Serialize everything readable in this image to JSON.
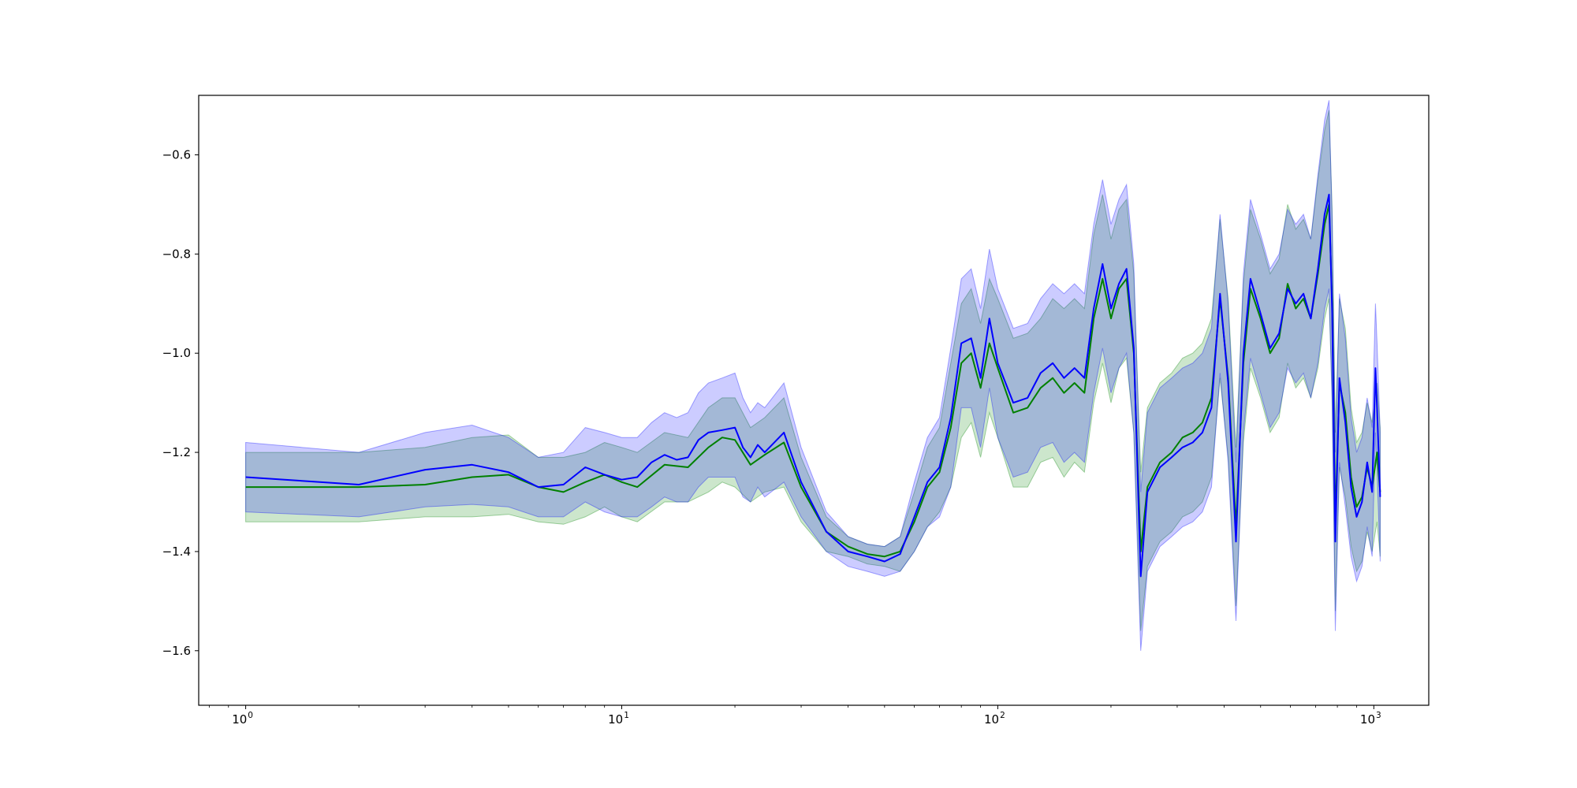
{
  "chart_data": {
    "type": "line",
    "title": "",
    "xlabel": "",
    "ylabel": "",
    "xscale": "log",
    "xlim": [
      0.75,
      1400
    ],
    "ylim": [
      -1.71,
      -0.48
    ],
    "grid": false,
    "legend": "none",
    "x_ticks": [
      {
        "base": "10",
        "exp": "0",
        "value": 1
      },
      {
        "base": "10",
        "exp": "1",
        "value": 10
      },
      {
        "base": "10",
        "exp": "2",
        "value": 100
      },
      {
        "base": "10",
        "exp": "3",
        "value": 1000
      }
    ],
    "y_ticks": [
      {
        "label": "−0.6",
        "value": -0.6
      },
      {
        "label": "−0.8",
        "value": -0.8
      },
      {
        "label": "−1.0",
        "value": -1.0
      },
      {
        "label": "−1.2",
        "value": -1.2
      },
      {
        "label": "−1.4",
        "value": -1.4
      },
      {
        "label": "−1.6",
        "value": -1.6
      }
    ],
    "series": [
      {
        "color": "#008000",
        "band_color": "#008000",
        "band_opacity": 0.2,
        "points": [
          [
            1,
            -1.27,
            -1.2,
            -1.34
          ],
          [
            2,
            -1.27,
            -1.2,
            -1.34
          ],
          [
            3,
            -1.265,
            -1.19,
            -1.33
          ],
          [
            4,
            -1.25,
            -1.17,
            -1.33
          ],
          [
            5,
            -1.245,
            -1.165,
            -1.325
          ],
          [
            6,
            -1.27,
            -1.21,
            -1.34
          ],
          [
            7,
            -1.28,
            -1.21,
            -1.345
          ],
          [
            8,
            -1.26,
            -1.2,
            -1.33
          ],
          [
            9,
            -1.245,
            -1.18,
            -1.31
          ],
          [
            10,
            -1.26,
            -1.19,
            -1.33
          ],
          [
            11,
            -1.27,
            -1.2,
            -1.34
          ],
          [
            13,
            -1.225,
            -1.16,
            -1.3
          ],
          [
            15,
            -1.23,
            -1.17,
            -1.3
          ],
          [
            17,
            -1.19,
            -1.11,
            -1.28
          ],
          [
            18.5,
            -1.17,
            -1.09,
            -1.26
          ],
          [
            20,
            -1.175,
            -1.09,
            -1.27
          ],
          [
            22,
            -1.225,
            -1.15,
            -1.3
          ],
          [
            24,
            -1.205,
            -1.13,
            -1.28
          ],
          [
            27,
            -1.18,
            -1.09,
            -1.27
          ],
          [
            30,
            -1.27,
            -1.21,
            -1.34
          ],
          [
            35,
            -1.36,
            -1.33,
            -1.4
          ],
          [
            40,
            -1.39,
            -1.37,
            -1.41
          ],
          [
            45,
            -1.405,
            -1.385,
            -1.425
          ],
          [
            50,
            -1.41,
            -1.39,
            -1.43
          ],
          [
            55,
            -1.4,
            -1.37,
            -1.44
          ],
          [
            60,
            -1.34,
            -1.28,
            -1.4
          ],
          [
            65,
            -1.27,
            -1.19,
            -1.35
          ],
          [
            70,
            -1.24,
            -1.15,
            -1.32
          ],
          [
            75,
            -1.15,
            -1.02,
            -1.27
          ],
          [
            80,
            -1.02,
            -0.9,
            -1.17
          ],
          [
            85,
            -1.0,
            -0.87,
            -1.14
          ],
          [
            90,
            -1.07,
            -0.94,
            -1.21
          ],
          [
            95,
            -0.98,
            -0.85,
            -1.12
          ],
          [
            100,
            -1.03,
            -0.89,
            -1.17
          ],
          [
            110,
            -1.12,
            -0.97,
            -1.27
          ],
          [
            120,
            -1.11,
            -0.96,
            -1.27
          ],
          [
            130,
            -1.07,
            -0.93,
            -1.22
          ],
          [
            140,
            -1.05,
            -0.89,
            -1.21
          ],
          [
            150,
            -1.08,
            -0.91,
            -1.25
          ],
          [
            160,
            -1.06,
            -0.89,
            -1.22
          ],
          [
            170,
            -1.08,
            -0.91,
            -1.24
          ],
          [
            180,
            -0.93,
            -0.76,
            -1.1
          ],
          [
            190,
            -0.85,
            -0.68,
            -1.02
          ],
          [
            200,
            -0.93,
            -0.77,
            -1.1
          ],
          [
            210,
            -0.87,
            -0.71,
            -1.03
          ],
          [
            220,
            -0.85,
            -0.69,
            -1.01
          ],
          [
            230,
            -1.0,
            -0.84,
            -1.16
          ],
          [
            240,
            -1.4,
            -1.24,
            -1.56
          ],
          [
            250,
            -1.27,
            -1.11,
            -1.43
          ],
          [
            270,
            -1.22,
            -1.06,
            -1.38
          ],
          [
            290,
            -1.2,
            -1.04,
            -1.36
          ],
          [
            310,
            -1.17,
            -1.01,
            -1.33
          ],
          [
            330,
            -1.16,
            -1.0,
            -1.32
          ],
          [
            350,
            -1.14,
            -0.98,
            -1.3
          ],
          [
            370,
            -1.09,
            -0.93,
            -1.25
          ],
          [
            390,
            -0.89,
            -0.73,
            -1.05
          ],
          [
            410,
            -1.05,
            -0.89,
            -1.21
          ],
          [
            430,
            -1.35,
            -1.19,
            -1.51
          ],
          [
            450,
            -1.02,
            -0.86,
            -1.18
          ],
          [
            470,
            -0.87,
            -0.71,
            -1.03
          ],
          [
            500,
            -0.93,
            -0.77,
            -1.09
          ],
          [
            530,
            -1.0,
            -0.84,
            -1.16
          ],
          [
            560,
            -0.97,
            -0.81,
            -1.13
          ],
          [
            590,
            -0.86,
            -0.7,
            -1.02
          ],
          [
            620,
            -0.91,
            -0.75,
            -1.07
          ],
          [
            650,
            -0.89,
            -0.73,
            -1.05
          ],
          [
            680,
            -0.93,
            -0.77,
            -1.09
          ],
          [
            710,
            -0.84,
            -0.65,
            -1.03
          ],
          [
            740,
            -0.74,
            -0.55,
            -0.93
          ],
          [
            760,
            -0.7,
            -0.51,
            -0.89
          ],
          [
            775,
            -0.9,
            -0.71,
            -1.09
          ],
          [
            790,
            -1.34,
            -1.16,
            -1.52
          ],
          [
            810,
            -1.06,
            -0.89,
            -1.23
          ],
          [
            840,
            -1.12,
            -0.95,
            -1.29
          ],
          [
            870,
            -1.25,
            -1.11,
            -1.39
          ],
          [
            900,
            -1.31,
            -1.18,
            -1.44
          ],
          [
            930,
            -1.29,
            -1.16,
            -1.42
          ],
          [
            960,
            -1.23,
            -1.1,
            -1.36
          ],
          [
            990,
            -1.27,
            -1.14,
            -1.4
          ],
          [
            1020,
            -1.2,
            -1.06,
            -1.34
          ],
          [
            1040,
            -1.28,
            -1.15,
            -1.41
          ]
        ]
      },
      {
        "color": "#0000ff",
        "band_color": "#0000ff",
        "band_opacity": 0.2,
        "points": [
          [
            1,
            -1.25,
            -1.18,
            -1.32
          ],
          [
            2,
            -1.265,
            -1.2,
            -1.33
          ],
          [
            3,
            -1.235,
            -1.16,
            -1.31
          ],
          [
            4,
            -1.225,
            -1.145,
            -1.305
          ],
          [
            5,
            -1.24,
            -1.17,
            -1.31
          ],
          [
            6,
            -1.27,
            -1.21,
            -1.33
          ],
          [
            7,
            -1.265,
            -1.2,
            -1.33
          ],
          [
            8,
            -1.23,
            -1.15,
            -1.3
          ],
          [
            9,
            -1.245,
            -1.16,
            -1.32
          ],
          [
            10,
            -1.255,
            -1.17,
            -1.33
          ],
          [
            11,
            -1.25,
            -1.17,
            -1.33
          ],
          [
            12,
            -1.22,
            -1.14,
            -1.31
          ],
          [
            13,
            -1.205,
            -1.12,
            -1.29
          ],
          [
            14,
            -1.215,
            -1.13,
            -1.3
          ],
          [
            15,
            -1.21,
            -1.12,
            -1.3
          ],
          [
            16,
            -1.175,
            -1.08,
            -1.27
          ],
          [
            17,
            -1.16,
            -1.06,
            -1.25
          ],
          [
            18.5,
            -1.155,
            -1.05,
            -1.25
          ],
          [
            20,
            -1.15,
            -1.04,
            -1.25
          ],
          [
            21,
            -1.19,
            -1.09,
            -1.29
          ],
          [
            22,
            -1.21,
            -1.12,
            -1.3
          ],
          [
            23,
            -1.185,
            -1.1,
            -1.27
          ],
          [
            24,
            -1.2,
            -1.11,
            -1.29
          ],
          [
            27,
            -1.16,
            -1.06,
            -1.26
          ],
          [
            30,
            -1.26,
            -1.19,
            -1.33
          ],
          [
            35,
            -1.36,
            -1.32,
            -1.4
          ],
          [
            40,
            -1.4,
            -1.37,
            -1.43
          ],
          [
            45,
            -1.41,
            -1.385,
            -1.44
          ],
          [
            50,
            -1.42,
            -1.39,
            -1.45
          ],
          [
            55,
            -1.405,
            -1.37,
            -1.44
          ],
          [
            60,
            -1.33,
            -1.26,
            -1.4
          ],
          [
            65,
            -1.26,
            -1.17,
            -1.35
          ],
          [
            70,
            -1.23,
            -1.13,
            -1.33
          ],
          [
            75,
            -1.13,
            -0.99,
            -1.27
          ],
          [
            80,
            -0.98,
            -0.85,
            -1.11
          ],
          [
            85,
            -0.97,
            -0.83,
            -1.11
          ],
          [
            90,
            -1.05,
            -0.91,
            -1.19
          ],
          [
            95,
            -0.93,
            -0.79,
            -1.07
          ],
          [
            100,
            -1.02,
            -0.87,
            -1.17
          ],
          [
            110,
            -1.1,
            -0.95,
            -1.25
          ],
          [
            120,
            -1.09,
            -0.94,
            -1.24
          ],
          [
            130,
            -1.04,
            -0.89,
            -1.19
          ],
          [
            140,
            -1.02,
            -0.86,
            -1.18
          ],
          [
            150,
            -1.05,
            -0.88,
            -1.22
          ],
          [
            160,
            -1.03,
            -0.86,
            -1.2
          ],
          [
            170,
            -1.05,
            -0.88,
            -1.22
          ],
          [
            180,
            -0.91,
            -0.74,
            -1.08
          ],
          [
            190,
            -0.82,
            -0.65,
            -0.99
          ],
          [
            200,
            -0.91,
            -0.74,
            -1.08
          ],
          [
            210,
            -0.86,
            -0.69,
            -1.03
          ],
          [
            220,
            -0.83,
            -0.66,
            -1.0
          ],
          [
            230,
            -0.99,
            -0.82,
            -1.16
          ],
          [
            240,
            -1.45,
            -1.28,
            -1.6
          ],
          [
            250,
            -1.28,
            -1.12,
            -1.44
          ],
          [
            270,
            -1.23,
            -1.07,
            -1.39
          ],
          [
            290,
            -1.21,
            -1.05,
            -1.37
          ],
          [
            310,
            -1.19,
            -1.03,
            -1.35
          ],
          [
            330,
            -1.18,
            -1.02,
            -1.34
          ],
          [
            350,
            -1.16,
            -1.0,
            -1.32
          ],
          [
            370,
            -1.11,
            -0.95,
            -1.27
          ],
          [
            390,
            -0.88,
            -0.72,
            -1.04
          ],
          [
            410,
            -1.06,
            -0.9,
            -1.22
          ],
          [
            430,
            -1.38,
            -1.22,
            -1.54
          ],
          [
            450,
            -1.0,
            -0.84,
            -1.16
          ],
          [
            470,
            -0.85,
            -0.69,
            -1.01
          ],
          [
            500,
            -0.92,
            -0.76,
            -1.08
          ],
          [
            530,
            -0.99,
            -0.83,
            -1.15
          ],
          [
            560,
            -0.96,
            -0.8,
            -1.12
          ],
          [
            590,
            -0.87,
            -0.71,
            -1.03
          ],
          [
            620,
            -0.9,
            -0.74,
            -1.06
          ],
          [
            650,
            -0.88,
            -0.72,
            -1.04
          ],
          [
            680,
            -0.93,
            -0.77,
            -1.09
          ],
          [
            710,
            -0.83,
            -0.64,
            -1.02
          ],
          [
            740,
            -0.72,
            -0.53,
            -0.91
          ],
          [
            760,
            -0.68,
            -0.49,
            -0.87
          ],
          [
            775,
            -0.92,
            -0.73,
            -1.11
          ],
          [
            790,
            -1.38,
            -1.2,
            -1.56
          ],
          [
            810,
            -1.05,
            -0.88,
            -1.22
          ],
          [
            840,
            -1.14,
            -0.97,
            -1.31
          ],
          [
            870,
            -1.27,
            -1.13,
            -1.41
          ],
          [
            900,
            -1.33,
            -1.2,
            -1.46
          ],
          [
            930,
            -1.3,
            -1.17,
            -1.43
          ],
          [
            960,
            -1.22,
            -1.09,
            -1.35
          ],
          [
            990,
            -1.28,
            -1.15,
            -1.41
          ],
          [
            1010,
            -1.03,
            -0.9,
            -1.16
          ],
          [
            1020,
            -1.11,
            -0.98,
            -1.24
          ],
          [
            1040,
            -1.29,
            -1.16,
            -1.42
          ]
        ]
      }
    ]
  }
}
